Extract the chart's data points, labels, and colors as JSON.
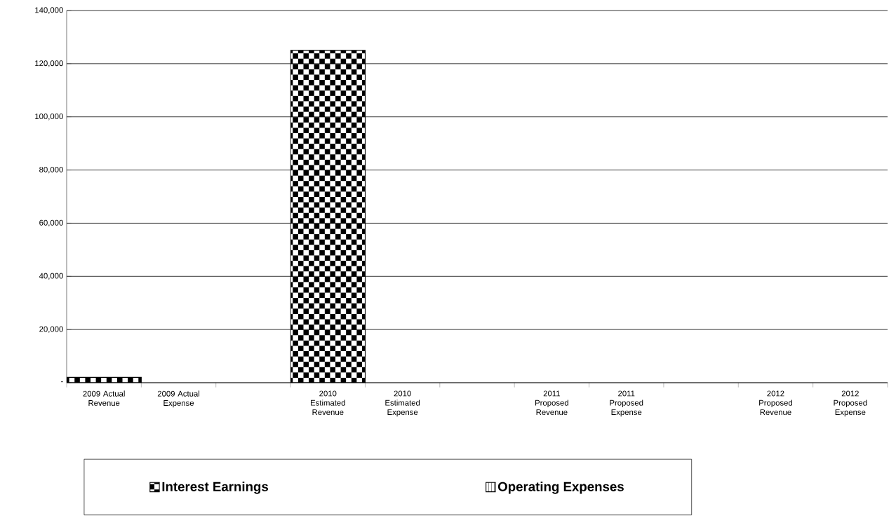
{
  "chart_data": {
    "type": "bar",
    "categories": [
      "2009 Actual Revenue",
      "2009 Actual Expense",
      null,
      "2010 Estimated Revenue",
      "2010 Estimated Expense",
      null,
      "2011 Proposed Revenue",
      "2011 Proposed Expense",
      null,
      "2012 Proposed Revenue",
      "2012 Proposed Expense"
    ],
    "series": [
      {
        "name": "Interest Earnings",
        "color": "#000000",
        "values": [
          2000,
          null,
          null,
          125000,
          null,
          null,
          null,
          null,
          null,
          null,
          null
        ]
      },
      {
        "name": "Operating Expenses",
        "color": "#000000",
        "values": [
          null,
          null,
          null,
          null,
          null,
          null,
          null,
          null,
          null,
          null,
          null
        ]
      }
    ],
    "ylim": [
      0,
      140000
    ],
    "yticks": [
      {
        "value": 0,
        "label": "-"
      },
      {
        "value": 20000,
        "label": "20,000"
      },
      {
        "value": 40000,
        "label": "40,000"
      },
      {
        "value": 60000,
        "label": "60,000"
      },
      {
        "value": 80000,
        "label": "80,000"
      },
      {
        "value": 100000,
        "label": "100,000"
      },
      {
        "value": 120000,
        "label": "120,000"
      },
      {
        "value": 140000,
        "label": "140,000"
      }
    ],
    "grid": "y",
    "legend": "bottom"
  }
}
